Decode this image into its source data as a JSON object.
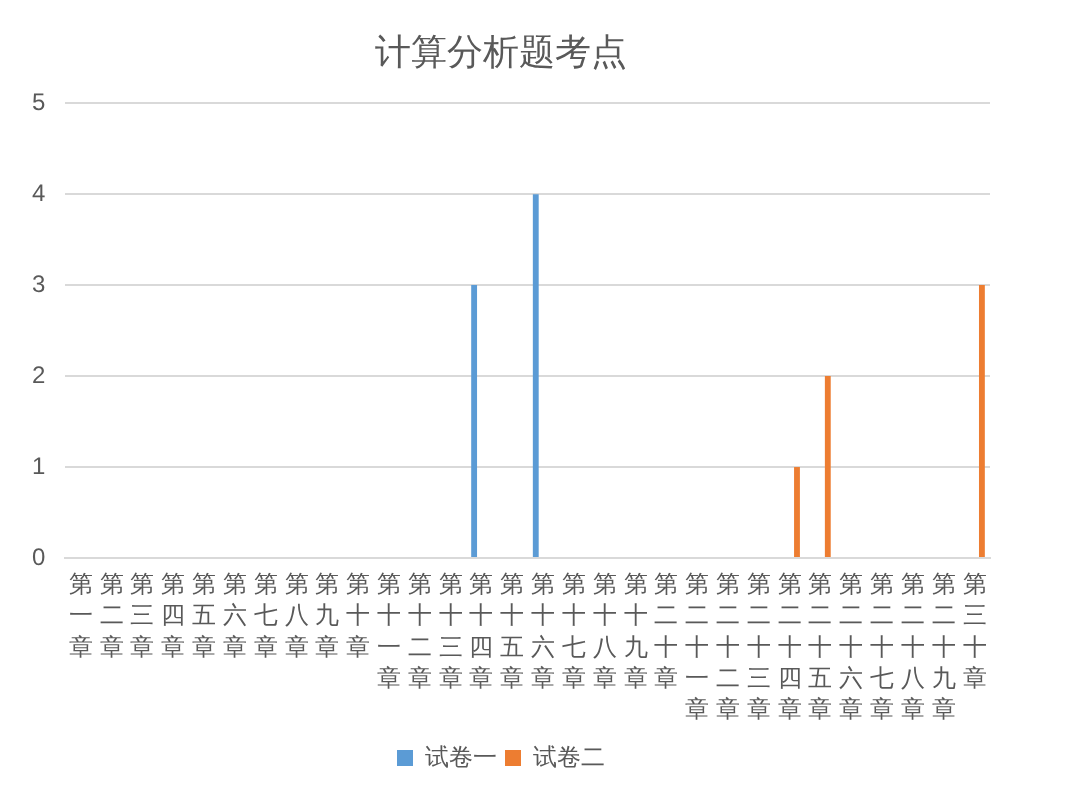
{
  "chart_data": {
    "type": "bar",
    "title": "计算分析题考点",
    "categories": [
      "第一章",
      "第二章",
      "第三章",
      "第四章",
      "第五章",
      "第六章",
      "第七章",
      "第八章",
      "第九章",
      "第十章",
      "第十一章",
      "第十二章",
      "第十三章",
      "第十四章",
      "第十五章",
      "第十六章",
      "第十七章",
      "第十八章",
      "第十九章",
      "第二十章",
      "第二十一章",
      "第二十二章",
      "第二十三章",
      "第二十四章",
      "第二十五章",
      "第二十六章",
      "第二十七章",
      "第二十八章",
      "第二十九章",
      "第三十章"
    ],
    "series": [
      {
        "name": "试卷一",
        "color": "#5b9bd5",
        "values": [
          0,
          0,
          0,
          0,
          0,
          0,
          0,
          0,
          0,
          0,
          0,
          0,
          0,
          3,
          0,
          4,
          0,
          0,
          0,
          0,
          0,
          0,
          0,
          0,
          0,
          0,
          0,
          0,
          0,
          0
        ]
      },
      {
        "name": "试卷二",
        "color": "#ed7d31",
        "values": [
          0,
          0,
          0,
          0,
          0,
          0,
          0,
          0,
          0,
          0,
          0,
          0,
          0,
          0,
          0,
          0,
          0,
          0,
          0,
          0,
          0,
          0,
          0,
          1,
          2,
          0,
          0,
          0,
          0,
          3
        ]
      }
    ],
    "ylim": [
      0,
      5
    ],
    "yticks": [
      0,
      1,
      2,
      3,
      4,
      5
    ],
    "grid": "y",
    "legend": "bottom"
  }
}
